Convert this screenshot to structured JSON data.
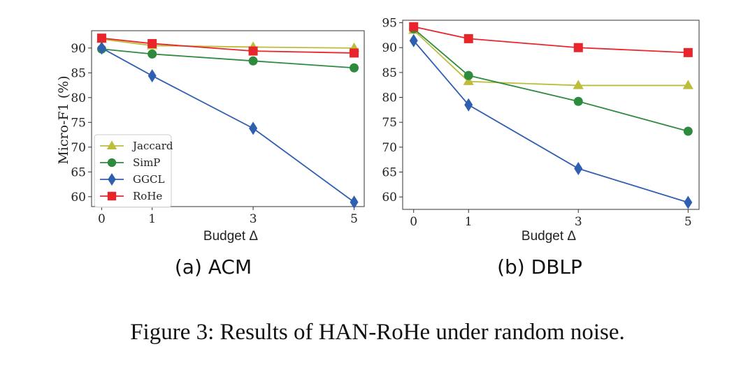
{
  "figure_caption": "Figure 3: Results of HAN-RoHe under random noise.",
  "colors": {
    "Jaccard": "#bcbd3a",
    "SimP": "#2e8b3e",
    "GGCL": "#2f5fb0",
    "RoHe": "#e8252a"
  },
  "markers": {
    "Jaccard": "triangle",
    "SimP": "circle",
    "GGCL": "diamond",
    "RoHe": "square"
  },
  "chart_data": [
    {
      "type": "line",
      "subcaption": "(a) ACM",
      "xlabel": "Budget Δ",
      "ylabel": "Micro-F1 (%)",
      "x": [
        0,
        1,
        3,
        5
      ],
      "xlim": [
        -0.2,
        5.2
      ],
      "ylim": [
        58,
        93.5
      ],
      "yticks": [
        60,
        65,
        70,
        75,
        80,
        85,
        90
      ],
      "xticks": [
        0,
        1,
        3,
        5
      ],
      "legend": "lower-left",
      "series": [
        {
          "name": "Jaccard",
          "values": [
            91.8,
            90.5,
            90.2,
            90.0
          ]
        },
        {
          "name": "SimP",
          "values": [
            89.8,
            88.8,
            87.4,
            86.0
          ]
        },
        {
          "name": "GGCL",
          "values": [
            90.0,
            84.4,
            73.8,
            58.9
          ]
        },
        {
          "name": "RoHe",
          "values": [
            92.0,
            90.9,
            89.4,
            89.0
          ]
        }
      ]
    },
    {
      "type": "line",
      "subcaption": "(b) DBLP",
      "xlabel": "Budget Δ",
      "ylabel": "",
      "x": [
        0,
        1,
        3,
        5
      ],
      "xlim": [
        -0.2,
        5.2
      ],
      "ylim": [
        57.5,
        95.5
      ],
      "yticks": [
        60,
        65,
        70,
        75,
        80,
        85,
        90,
        95
      ],
      "xticks": [
        0,
        1,
        3,
        5
      ],
      "legend": "none",
      "series": [
        {
          "name": "Jaccard",
          "values": [
            93.5,
            83.2,
            82.4,
            82.4
          ]
        },
        {
          "name": "SimP",
          "values": [
            93.8,
            84.4,
            79.2,
            73.2
          ]
        },
        {
          "name": "GGCL",
          "values": [
            91.4,
            78.5,
            65.7,
            58.9
          ]
        },
        {
          "name": "RoHe",
          "values": [
            94.2,
            91.8,
            90.0,
            89.0
          ]
        }
      ]
    }
  ]
}
